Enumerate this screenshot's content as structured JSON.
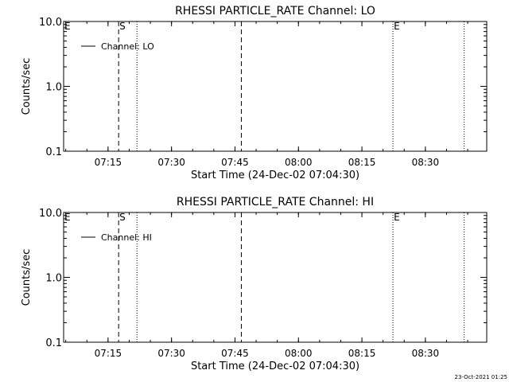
{
  "chart_data": [
    {
      "type": "line",
      "title": "RHESSI PARTICLE_RATE Channel: LO",
      "xlabel": "Start Time (24-Dec-02 07:04:30)",
      "ylabel": "Counts/sec",
      "y_scale": "log",
      "ylim": [
        0.1,
        10.0
      ],
      "xlim": [
        "07:04:30",
        "08:44:30"
      ],
      "x_ticks": [
        "07:15",
        "07:30",
        "07:45",
        "08:00",
        "08:15",
        "08:30"
      ],
      "y_ticks": [
        "0.1",
        "1.0",
        "10.0"
      ],
      "grid": false,
      "legend": {
        "placement": "top-left",
        "entries": [
          "Channel: LO"
        ]
      },
      "series": [
        {
          "name": "Channel: LO",
          "values": []
        }
      ],
      "markers": [
        {
          "time": "07:04:30",
          "style": "dotted",
          "label": "E"
        },
        {
          "time": "07:17:30",
          "style": "dashed",
          "label": "S"
        },
        {
          "time": "07:21:50",
          "style": "dotted",
          "label": ""
        },
        {
          "time": "07:46:30",
          "style": "dashed",
          "label": ""
        },
        {
          "time": "08:22:20",
          "style": "dotted",
          "label": "E"
        },
        {
          "time": "08:39:10",
          "style": "dotted",
          "label": ""
        }
      ]
    },
    {
      "type": "line",
      "title": "RHESSI PARTICLE_RATE Channel: HI",
      "xlabel": "Start Time (24-Dec-02 07:04:30)",
      "ylabel": "Counts/sec",
      "y_scale": "log",
      "ylim": [
        0.1,
        10.0
      ],
      "xlim": [
        "07:04:30",
        "08:44:30"
      ],
      "x_ticks": [
        "07:15",
        "07:30",
        "07:45",
        "08:00",
        "08:15",
        "08:30"
      ],
      "y_ticks": [
        "0.1",
        "1.0",
        "10.0"
      ],
      "grid": false,
      "legend": {
        "placement": "top-left",
        "entries": [
          "Channel: HI"
        ]
      },
      "series": [
        {
          "name": "Channel: HI",
          "values": []
        }
      ],
      "markers": [
        {
          "time": "07:04:30",
          "style": "dotted",
          "label": "E"
        },
        {
          "time": "07:17:30",
          "style": "dashed",
          "label": "S"
        },
        {
          "time": "07:21:50",
          "style": "dotted",
          "label": ""
        },
        {
          "time": "07:46:30",
          "style": "dashed",
          "label": ""
        },
        {
          "time": "08:22:20",
          "style": "dotted",
          "label": "E"
        },
        {
          "time": "08:39:10",
          "style": "dotted",
          "label": ""
        }
      ]
    }
  ],
  "footer": {
    "timestamp": "23-Oct-2021 01:25"
  }
}
